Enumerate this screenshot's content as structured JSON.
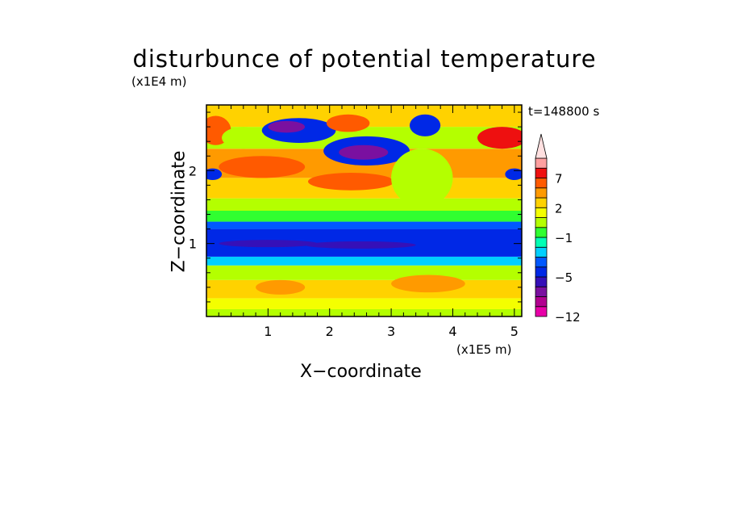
{
  "chart_data": {
    "type": "heatmap",
    "title": "disturbunce of potential temperature",
    "xlabel": "X−coordinate",
    "ylabel": "Z−coordinate",
    "x_unit": "(x1E5 m)",
    "z_unit": "(x1E4 m)",
    "time_label": "t=148800 s",
    "xlim": [
      0,
      5.12
    ],
    "zlim": [
      0,
      2.9
    ],
    "x_ticks": [
      "1",
      "2",
      "3",
      "4",
      "5"
    ],
    "z_ticks": [
      "1",
      "2"
    ],
    "x_tick_values": [
      1,
      2,
      3,
      4,
      5
    ],
    "z_tick_values": [
      1,
      2
    ],
    "colorbar": {
      "tick_labels": [
        "7",
        "2",
        "−1",
        "−5",
        "−12"
      ],
      "tick_levels": [
        7,
        2,
        -1,
        -5,
        -12
      ],
      "levels": [
        -12,
        -10,
        -8,
        -6,
        -5,
        -4,
        -3,
        -2,
        -1,
        0,
        1,
        2,
        3,
        5,
        7,
        9,
        11
      ],
      "colors": [
        "#e800a8",
        "#b20090",
        "#7a10a0",
        "#3510b8",
        "#0028e6",
        "#0058ff",
        "#00cfff",
        "#00ffb4",
        "#30ff30",
        "#b4ff00",
        "#f4ff00",
        "#ffd200",
        "#ff9a00",
        "#ff5a00",
        "#ee1010",
        "#ffa0a0",
        "#ffe0e0"
      ]
    },
    "field_bands": [
      {
        "z_range": [
          0.0,
          0.1
        ],
        "value": 0.5
      },
      {
        "z_range": [
          0.1,
          0.25
        ],
        "value": 1.5
      },
      {
        "z_range": [
          0.25,
          0.5
        ],
        "value": 2.2
      },
      {
        "z_range": [
          0.5,
          0.7
        ],
        "value": 0.3
      },
      {
        "z_range": [
          0.7,
          0.82
        ],
        "value": -2.5
      },
      {
        "z_range": [
          0.82,
          1.2
        ],
        "value": -4.5
      },
      {
        "z_range": [
          1.2,
          1.3
        ],
        "value": -3.5
      },
      {
        "z_range": [
          1.3,
          1.45
        ],
        "value": -0.5
      },
      {
        "z_range": [
          1.45,
          1.62
        ],
        "value": 0.5
      },
      {
        "z_range": [
          1.62,
          1.9
        ],
        "value": 2.5
      },
      {
        "z_range": [
          1.9,
          2.3
        ],
        "value": 4
      },
      {
        "z_range": [
          2.3,
          2.6
        ],
        "value": 0.5
      },
      {
        "z_range": [
          2.6,
          2.9
        ],
        "value": 2.5
      }
    ],
    "field_features": [
      {
        "x": 1.0,
        "z": 1.0,
        "rx": 0.8,
        "rz": 0.05,
        "value": -6
      },
      {
        "x": 2.5,
        "z": 0.98,
        "rx": 0.9,
        "rz": 0.05,
        "value": -6
      },
      {
        "x": 1.5,
        "z": 2.55,
        "rx": 0.6,
        "rz": 0.17,
        "value": -5
      },
      {
        "x": 1.3,
        "z": 2.6,
        "rx": 0.3,
        "rz": 0.08,
        "value": -7
      },
      {
        "x": 2.6,
        "z": 2.27,
        "rx": 0.7,
        "rz": 0.2,
        "value": -5
      },
      {
        "x": 2.55,
        "z": 2.25,
        "rx": 0.4,
        "rz": 0.1,
        "value": -7
      },
      {
        "x": 3.55,
        "z": 2.62,
        "rx": 0.25,
        "rz": 0.15,
        "value": -4.5
      },
      {
        "x": 0.1,
        "z": 1.95,
        "rx": 0.15,
        "rz": 0.08,
        "value": -4.5
      },
      {
        "x": 5.0,
        "z": 1.95,
        "rx": 0.15,
        "rz": 0.08,
        "value": -4.5
      },
      {
        "x": 0.15,
        "z": 2.55,
        "rx": 0.25,
        "rz": 0.2,
        "value": 5
      },
      {
        "x": 4.8,
        "z": 2.45,
        "rx": 0.4,
        "rz": 0.15,
        "value": 7
      },
      {
        "x": 0.9,
        "z": 2.05,
        "rx": 0.7,
        "rz": 0.15,
        "value": 5
      },
      {
        "x": 2.35,
        "z": 1.85,
        "rx": 0.7,
        "rz": 0.12,
        "value": 5
      },
      {
        "x": 2.3,
        "z": 2.65,
        "rx": 0.35,
        "rz": 0.12,
        "value": 5
      },
      {
        "x": 0.6,
        "z": 2.45,
        "rx": 0.35,
        "rz": 0.15,
        "value": 0.5
      },
      {
        "x": 3.5,
        "z": 1.9,
        "rx": 0.5,
        "rz": 0.4,
        "value": 0.5
      },
      {
        "x": 1.2,
        "z": 0.4,
        "rx": 0.4,
        "rz": 0.1,
        "value": 3
      },
      {
        "x": 3.6,
        "z": 0.45,
        "rx": 0.6,
        "rz": 0.12,
        "value": 3
      }
    ]
  }
}
